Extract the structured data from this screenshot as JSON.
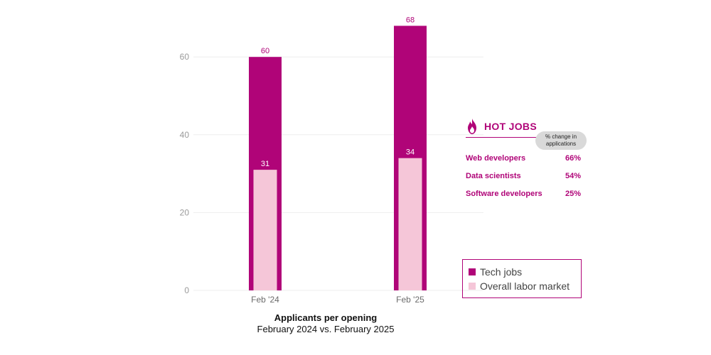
{
  "colors": {
    "tech": "#b00478",
    "overall": "#f5c6d8",
    "grid": "#eeeeee",
    "axis_text": "#9a9a9a"
  },
  "chart_data": {
    "type": "bar",
    "title": "Applicants per opening",
    "subtitle": "February 2024 vs. February 2025",
    "categories": [
      "Feb '24",
      "Feb '25"
    ],
    "series": [
      {
        "name": "Tech jobs",
        "values": [
          60,
          68
        ]
      },
      {
        "name": "Overall labor market",
        "values": [
          31,
          34
        ]
      }
    ],
    "y_ticks": [
      0,
      20,
      40,
      60
    ],
    "ylim": [
      0,
      70
    ],
    "grid": true,
    "legend_position": "bottom-right",
    "overlay": true
  },
  "hot_jobs": {
    "title": "HOT JOBS",
    "change_header": "% change in applications",
    "icon": "flame-icon",
    "rows": [
      {
        "name": "Web developers",
        "pct": "66%"
      },
      {
        "name": "Data scientists",
        "pct": "54%"
      },
      {
        "name": "Software developers",
        "pct": "25%"
      }
    ]
  },
  "legend": {
    "items": [
      "Tech jobs",
      "Overall labor market"
    ]
  }
}
